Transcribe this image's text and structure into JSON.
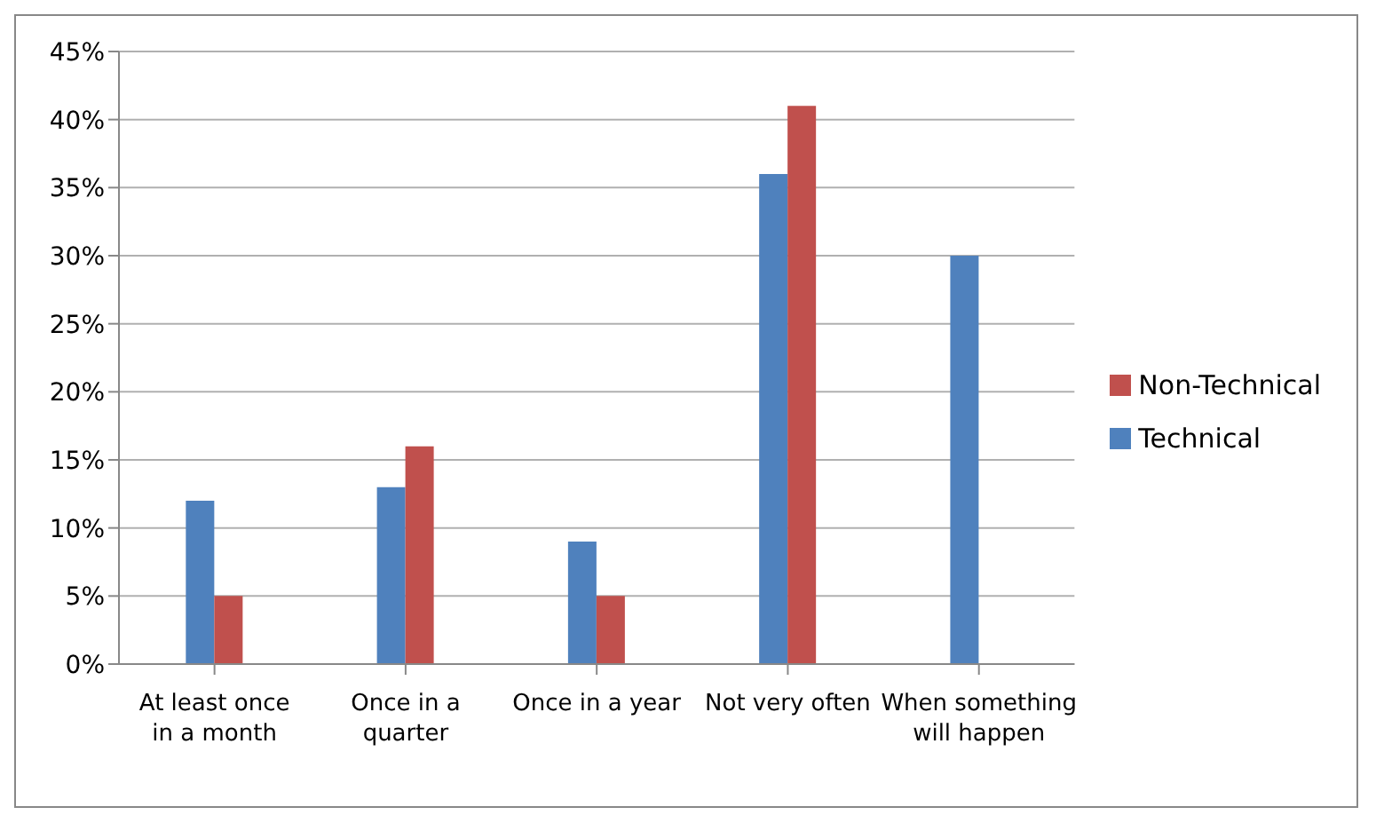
{
  "chart_data": {
    "type": "bar",
    "categories": [
      "At least once in a month",
      "Once in a quarter",
      "Once in a year",
      "Not very often",
      "When something will happen"
    ],
    "series": [
      {
        "name": "Technical",
        "color": "#4f81bd",
        "values": [
          12,
          13,
          9,
          36,
          30
        ]
      },
      {
        "name": "Non-Technical",
        "color": "#c0504d",
        "values": [
          5,
          16,
          5,
          41,
          null
        ]
      }
    ],
    "ylim": [
      0,
      45
    ],
    "yticks": [
      {
        "value": 0,
        "label": "0%"
      },
      {
        "value": 5,
        "label": "5%"
      },
      {
        "value": 10,
        "label": "10%"
      },
      {
        "value": 15,
        "label": "15%"
      },
      {
        "value": 20,
        "label": "20%"
      },
      {
        "value": 25,
        "label": "25%"
      },
      {
        "value": 30,
        "label": "30%"
      },
      {
        "value": 35,
        "label": "35%"
      },
      {
        "value": 40,
        "label": "40%"
      },
      {
        "value": 45,
        "label": "45%"
      }
    ],
    "grid": "y",
    "legend": "right"
  }
}
